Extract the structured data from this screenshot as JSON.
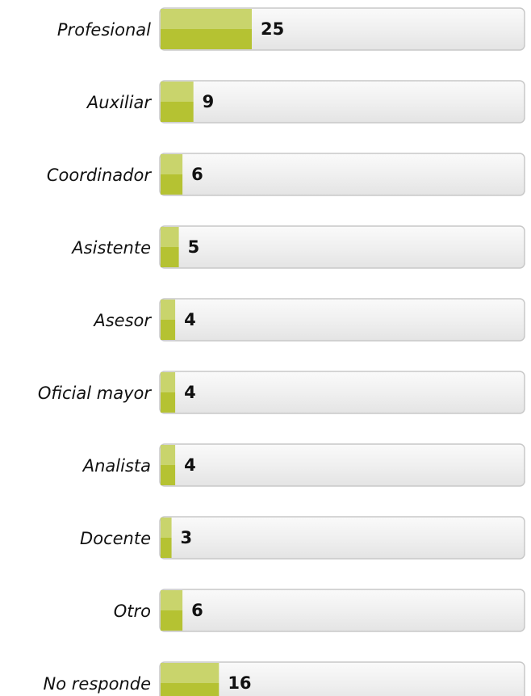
{
  "chart_data": {
    "type": "bar",
    "orientation": "horizontal",
    "categories": [
      "Profesional",
      "Auxiliar",
      "Coordinador",
      "Asistente",
      "Asesor",
      "Oficial mayor",
      "Analista",
      "Docente",
      "Otro",
      "No responde"
    ],
    "values": [
      25,
      9,
      6,
      5,
      4,
      4,
      4,
      3,
      6,
      16
    ],
    "color": "#b5c232",
    "xlim": [
      0,
      100
    ]
  }
}
